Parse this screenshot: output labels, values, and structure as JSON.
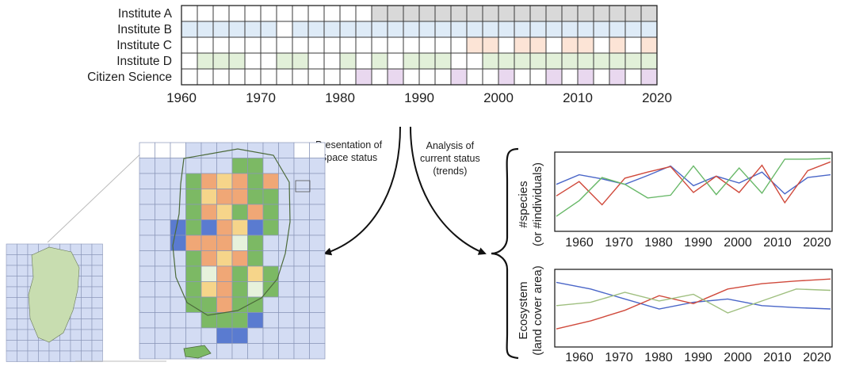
{
  "timeline": {
    "rows": [
      {
        "label": "Institute A",
        "color": "#d9d9d9",
        "filled": [
          12,
          13,
          14,
          15,
          16,
          17,
          18,
          19,
          20,
          21,
          22,
          23,
          24,
          25,
          26,
          27,
          28,
          29
        ]
      },
      {
        "label": "Institute B",
        "color": "#deebf7",
        "filled": [
          0,
          1,
          2,
          3,
          4,
          5,
          7,
          8,
          9,
          10,
          11,
          12,
          13,
          14,
          15,
          16,
          17,
          18,
          19,
          20,
          21,
          22,
          23,
          24,
          25,
          26,
          27,
          28,
          29
        ]
      },
      {
        "label": "Institute C",
        "color": "#fce4d6",
        "filled": [
          18,
          19,
          21,
          22,
          24,
          25,
          27,
          29
        ]
      },
      {
        "label": "Institute D",
        "color": "#e2f0d9",
        "filled": [
          1,
          2,
          3,
          6,
          7,
          10,
          12,
          14,
          15,
          16,
          19,
          20,
          21,
          22,
          23,
          24,
          25,
          26,
          27,
          28,
          29
        ]
      },
      {
        "label": "Citizen Science",
        "color": "#e9d8ef",
        "filled": [
          11,
          13,
          17,
          20,
          23,
          25,
          27,
          29
        ]
      }
    ],
    "years": [
      "1960",
      "1970",
      "1980",
      "1990",
      "2000",
      "2010",
      "2020"
    ]
  },
  "notes": {
    "space": [
      "Presentation of",
      "Space status"
    ],
    "trend": [
      "Analysis of",
      "current status",
      "(trends)"
    ]
  },
  "top_chart": {
    "ylabel": [
      "#species",
      "(or #individuals)"
    ],
    "ticks": [
      "1960",
      "1970",
      "1980",
      "1990",
      "2000",
      "2010",
      "2020"
    ],
    "series": [
      {
        "color": "#4a66c8",
        "values": [
          62,
          76,
          70,
          62,
          75,
          89,
          60,
          74,
          64,
          80,
          48,
          72,
          76
        ]
      },
      {
        "color": "#d04a3c",
        "values": [
          45,
          66,
          32,
          71,
          80,
          88,
          50,
          74,
          50,
          90,
          35,
          82,
          95
        ]
      },
      {
        "color": "#68b868",
        "values": [
          15,
          38,
          72,
          62,
          42,
          46,
          89,
          47,
          86,
          49,
          99,
          99,
          100
        ]
      }
    ]
  },
  "bottom_chart": {
    "ylabel": [
      "Ecosystem",
      "(land cover area)"
    ],
    "ticks": [
      "1960",
      "1970",
      "1980",
      "1990",
      "2000",
      "2010",
      "2020"
    ],
    "series": [
      {
        "color": "#4a66c8",
        "values": [
          90,
          80,
          65,
          50,
          60,
          65,
          55,
          52,
          50
        ]
      },
      {
        "color": "#d04a3c",
        "values": [
          20,
          32,
          48,
          70,
          58,
          80,
          88,
          92,
          95
        ]
      },
      {
        "color": "#9fbf7f",
        "values": [
          55,
          60,
          75,
          62,
          72,
          44,
          62,
          80,
          78
        ]
      }
    ]
  },
  "map": {
    "palette": {
      "blue": "#d3dcf3",
      "b2": "#5a7bd0",
      "green": "#7cb964",
      "lg": "#b9dba6",
      "orange": "#f0a776",
      "yellow": "#f6d58a",
      "white": "#ffffff",
      "pale": "#e7f2dc"
    }
  }
}
